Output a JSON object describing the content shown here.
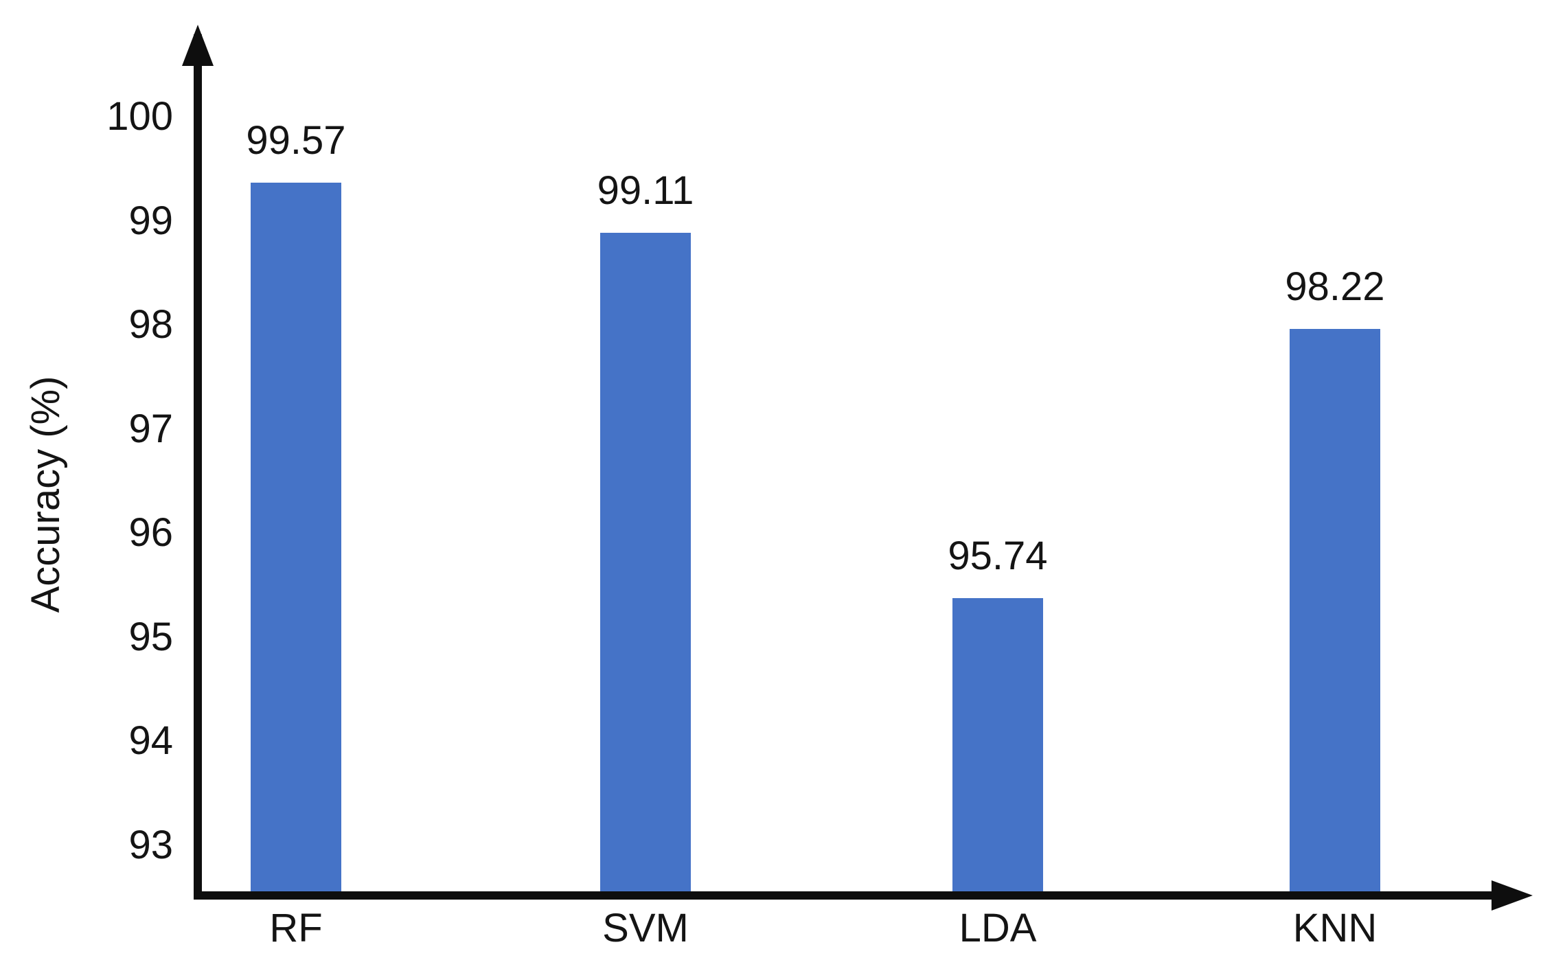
{
  "chart_data": {
    "type": "bar",
    "title": "",
    "categories": [
      "RF",
      "SVM",
      "LDA",
      "KNN"
    ],
    "values": [
      99.57,
      99.11,
      95.74,
      98.22
    ],
    "value_labels": [
      "99.57",
      "99.11",
      "95.74",
      "98.22"
    ],
    "xlabel": "",
    "ylabel": "Accuracy (%)",
    "yticks": [
      100,
      99,
      98,
      97,
      96,
      95,
      94,
      93
    ],
    "ylim": [
      93,
      100.8
    ],
    "grid": false,
    "legend": "none",
    "bar_color": "#4573C7",
    "axis_color": "#0e0e0e",
    "text_color": "#141414",
    "background": "#ffffff"
  }
}
